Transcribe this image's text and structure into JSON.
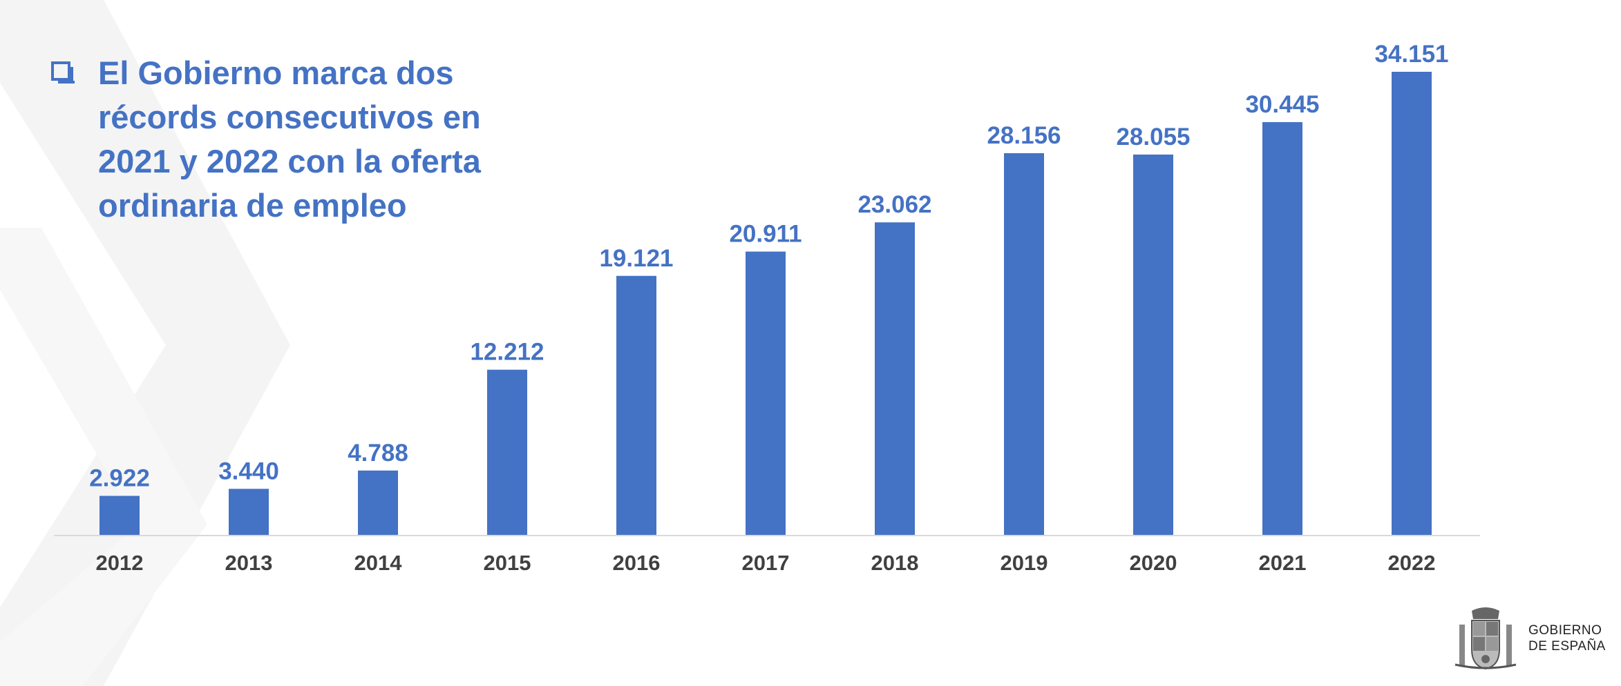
{
  "title": "El Gobierno marca dos récords consecutivos en 2021 y 2022 con la oferta ordinaria de empleo",
  "logo": {
    "line1": "GOBIERNO",
    "line2": "DE ESPAÑA"
  },
  "colors": {
    "accent": "#4472C4",
    "axis_text": "#404040",
    "background_pattern": "#f2f2f2"
  },
  "chart_data": {
    "type": "bar",
    "categories": [
      "2012",
      "2013",
      "2014",
      "2015",
      "2016",
      "2017",
      "2018",
      "2019",
      "2020",
      "2021",
      "2022"
    ],
    "values": [
      2922,
      3440,
      4788,
      12212,
      19121,
      20911,
      23062,
      28156,
      28055,
      30445,
      34151
    ],
    "value_labels": [
      "2.922",
      "3.440",
      "4.788",
      "12.212",
      "19.121",
      "20.911",
      "23.062",
      "28.156",
      "28.055",
      "30.445",
      "34.151"
    ],
    "xlabel": "",
    "ylabel": "",
    "ylim": [
      0,
      34151
    ],
    "grid": false,
    "legend": "none"
  }
}
